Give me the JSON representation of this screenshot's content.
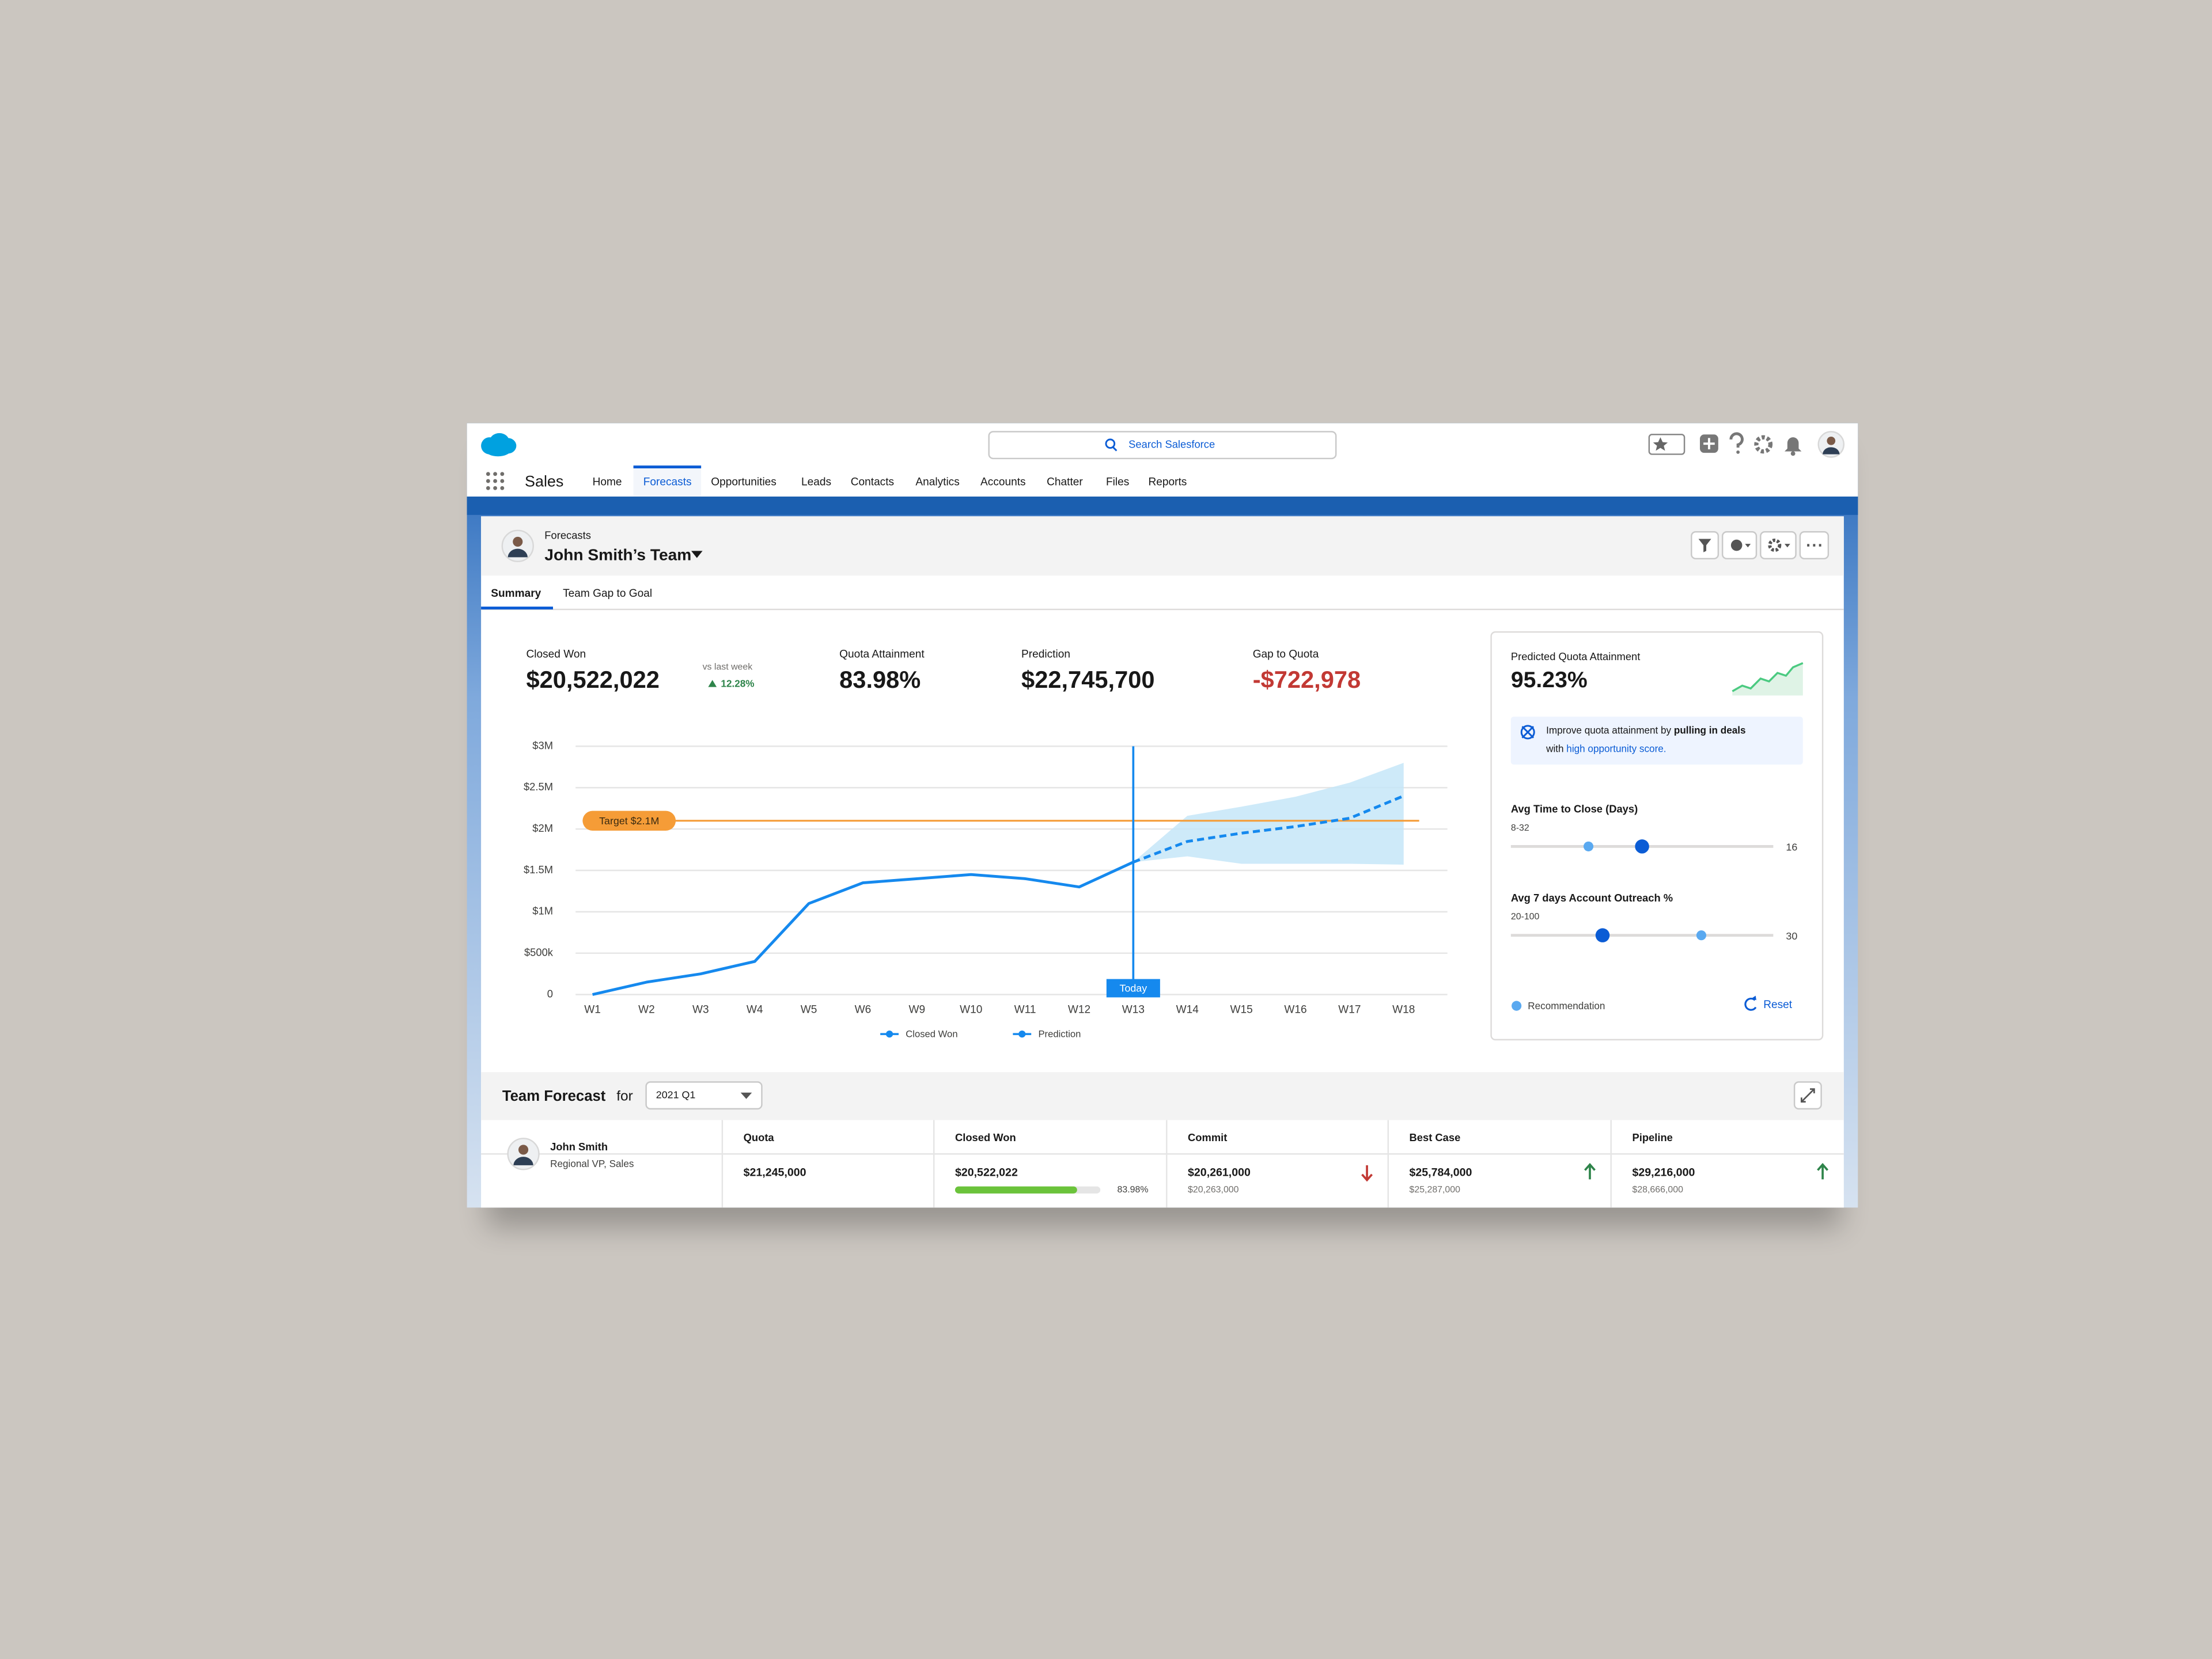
{
  "app": {
    "name": "Sales",
    "search": "Search Salesforce",
    "nav": [
      "Home",
      "Forecasts",
      "Opportunities",
      "Leads",
      "Contacts",
      "Analytics",
      "Accounts",
      "Chatter",
      "Files",
      "Reports"
    ],
    "active_nav": "Forecasts"
  },
  "header": {
    "breadcrumb": "Forecasts",
    "title": "John Smith’s Team"
  },
  "tabs": [
    "Summary",
    "Team Gap to Goal"
  ],
  "active_tab": "Summary",
  "kpis": [
    {
      "label": "Closed Won",
      "value": "$20,522,022",
      "change_label": "vs last week",
      "change": "12.28%",
      "direction": "up",
      "color": "#181818"
    },
    {
      "label": "Quota Attainment",
      "value": "83.98%",
      "color": "#181818"
    },
    {
      "label": "Prediction",
      "value": "$22,745,700",
      "color": "#181818"
    },
    {
      "label": "Gap to Quota",
      "value": "-$722,978",
      "color": "#c23934"
    }
  ],
  "chart_data": {
    "type": "line",
    "categories": [
      "W1",
      "W2",
      "W3",
      "W4",
      "W5",
      "W6",
      "W9",
      "W10",
      "W11",
      "W12",
      "W13",
      "W14",
      "W15",
      "W16",
      "W17",
      "W18"
    ],
    "series": [
      {
        "name": "Closed Won",
        "color": "#1589ee",
        "dashed": false,
        "values": [
          0,
          150000,
          250000,
          400000,
          1100000,
          1350000,
          1400000,
          1450000,
          1400000,
          1300000,
          1600000,
          null,
          null,
          null,
          null,
          null
        ]
      },
      {
        "name": "Prediction",
        "color": "#1589ee",
        "dashed": true,
        "values": [
          null,
          null,
          null,
          null,
          null,
          null,
          null,
          null,
          null,
          null,
          1600000,
          1850000,
          1950000,
          2030000,
          2130000,
          2400000
        ],
        "range_low": [
          null,
          null,
          null,
          null,
          null,
          null,
          null,
          null,
          null,
          null,
          1600000,
          1670000,
          1580000,
          1580000,
          1580000,
          1570000
        ],
        "range_high": [
          null,
          null,
          null,
          null,
          null,
          null,
          null,
          null,
          null,
          null,
          1600000,
          2160000,
          2270000,
          2390000,
          2560000,
          2800000
        ],
        "range_color": "#c6e6f8"
      }
    ],
    "ylim": [
      0,
      3000000
    ],
    "yticks": [
      0,
      {
        "value": 500000,
        "label": "$500k"
      },
      {
        "value": 1000000,
        "label": "$1M"
      },
      {
        "value": 1500000,
        "label": "$1.5M"
      },
      {
        "value": 2000000,
        "label": "$2M"
      },
      {
        "value": 2500000,
        "label": "$2.5M"
      },
      {
        "value": 3000000,
        "label": "$3M"
      }
    ],
    "grid": true,
    "target": {
      "label": "Target $2.1M",
      "value": 2100000,
      "color": "#f59c37"
    },
    "marker": {
      "label": "Today",
      "category": "W13"
    },
    "legend": "bottom"
  },
  "panel": {
    "title": "Predicted Quota Attainment",
    "value": "95.23%",
    "tip": {
      "text": "Improve quota attainment by ",
      "bold": "pulling in deals",
      "text2": "with ",
      "link": "high opportunity score."
    },
    "sliders": [
      {
        "label": "Avg Time to Close (Days)",
        "range": "8-32",
        "value": 16
      },
      {
        "label": "Avg 7 days Account Outreach %",
        "range": "20-100",
        "value": 30
      }
    ],
    "legend": "Recommendation",
    "reset": "Reset"
  },
  "team_forecast": {
    "title": "Team Forecast",
    "for": "for",
    "period": "2021 Q1",
    "person": {
      "name": "John Smith",
      "role": "Regional VP, Sales"
    },
    "columns": [
      "Quota",
      "Closed Won",
      "Commit",
      "Best Case",
      "Pipeline"
    ],
    "cells": [
      {
        "value": "$21,245,000"
      },
      {
        "value": "$20,522,022",
        "progress": 83.98,
        "progress_label": "83.98%"
      },
      {
        "value": "$20,261,000",
        "prev": "$20,263,000",
        "trend": "down"
      },
      {
        "value": "$25,784,000",
        "prev": "$25,287,000",
        "trend": "up"
      },
      {
        "value": "$29,216,000",
        "prev": "$28,666,000",
        "trend": "up"
      }
    ]
  }
}
